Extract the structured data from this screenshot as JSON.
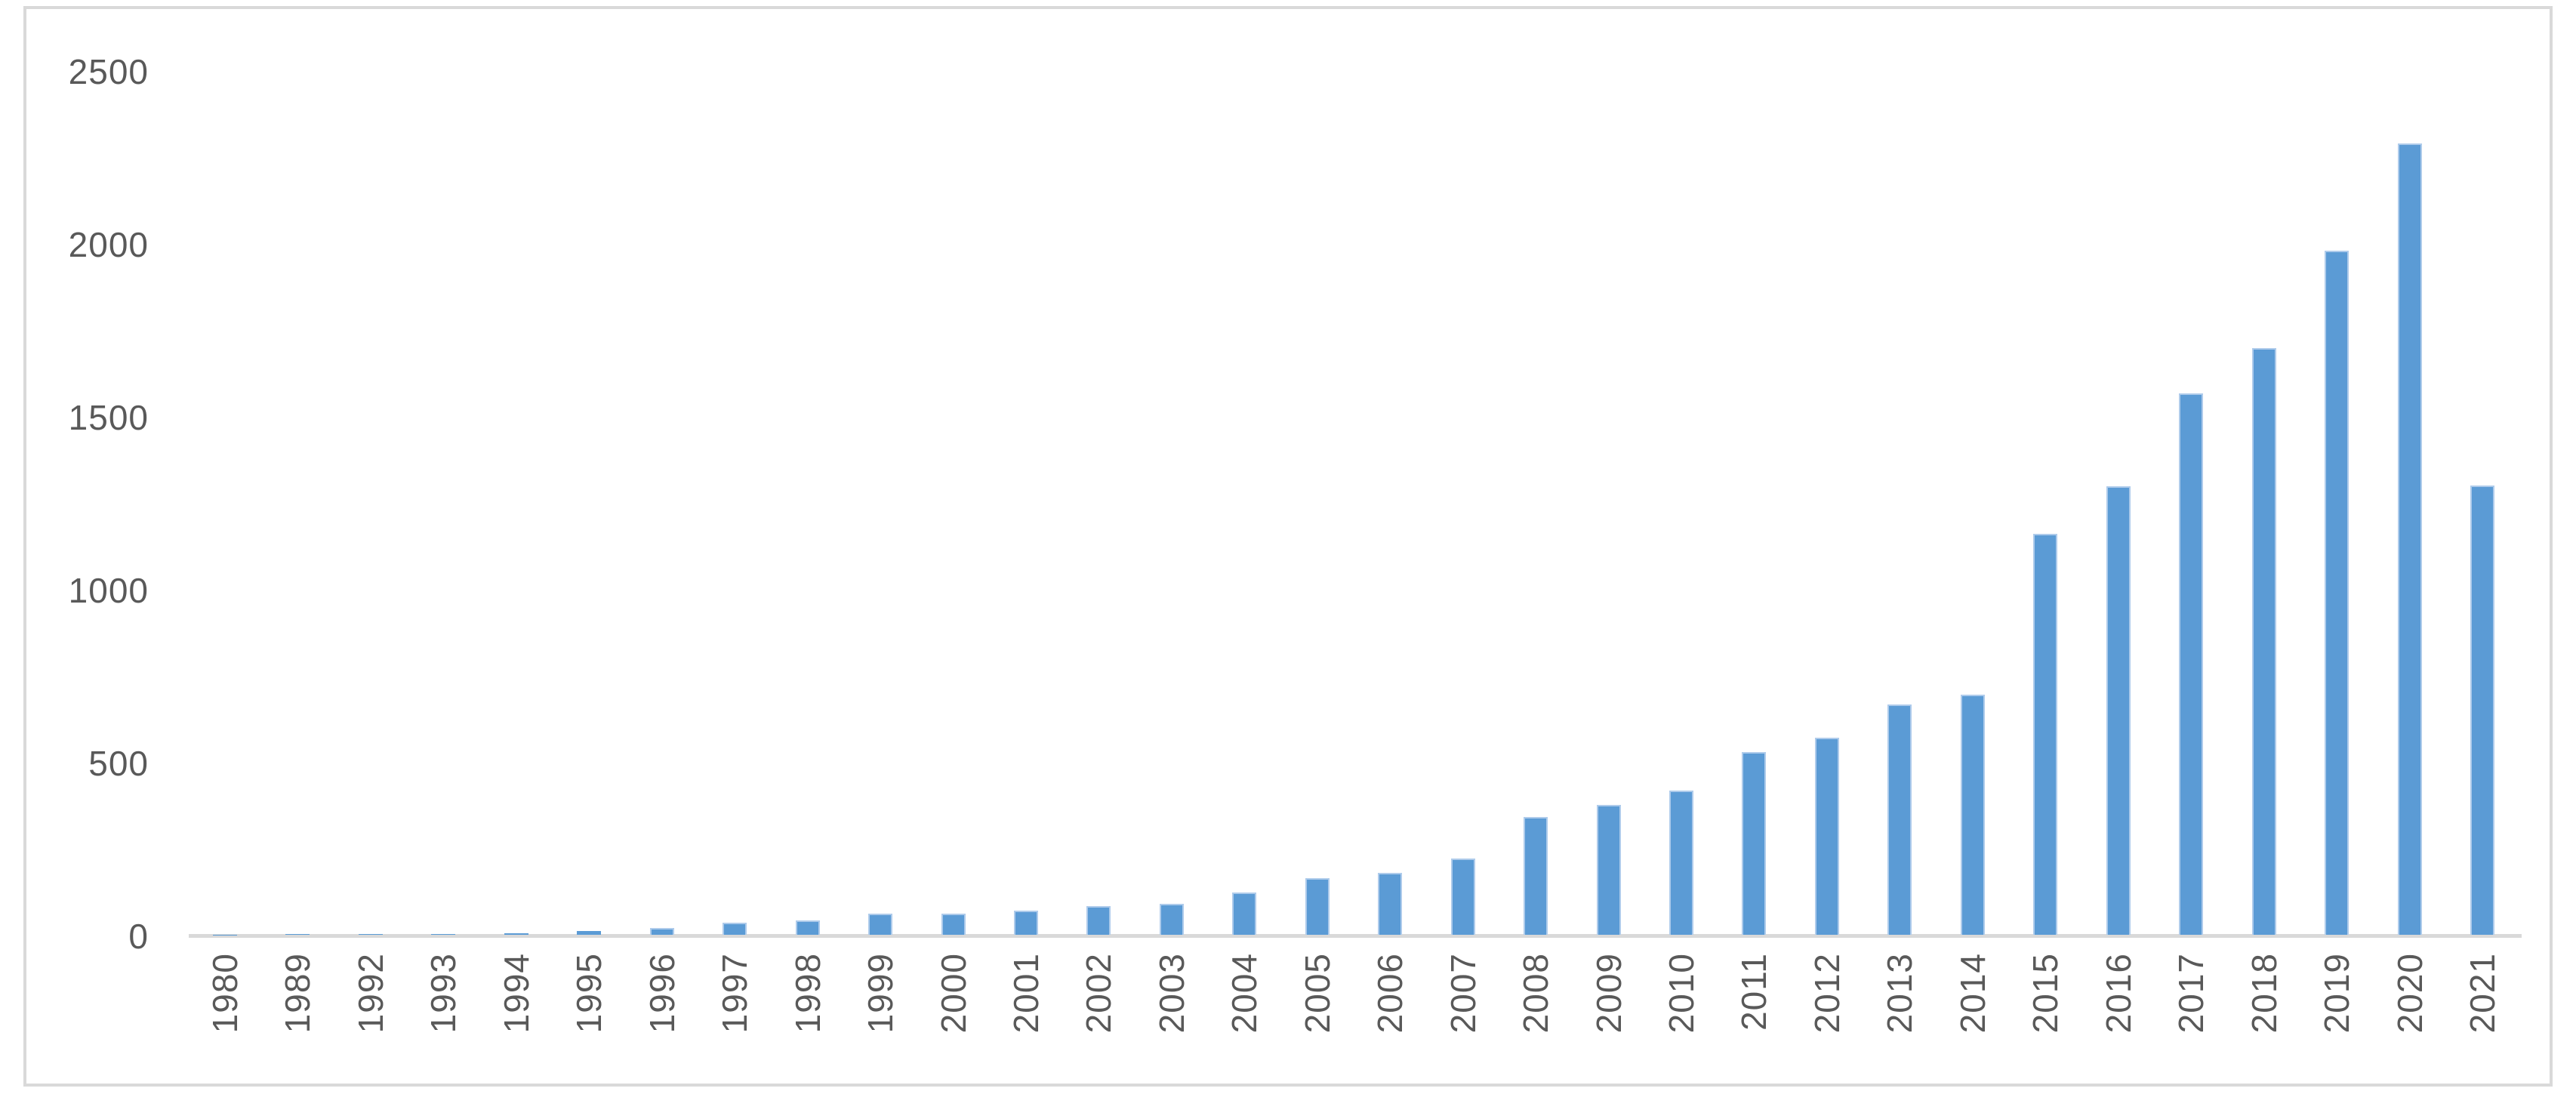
{
  "chart_data": {
    "type": "bar",
    "title": "",
    "xlabel": "",
    "ylabel": "",
    "categories": [
      "1980",
      "1989",
      "1992",
      "1993",
      "1994",
      "1995",
      "1996",
      "1997",
      "1998",
      "1999",
      "2000",
      "2001",
      "2002",
      "2003",
      "2004",
      "2005",
      "2006",
      "2007",
      "2008",
      "2009",
      "2010",
      "2011",
      "2012",
      "2013",
      "2014",
      "2015",
      "2016",
      "2017",
      "2018",
      "2019",
      "2020",
      "2021"
    ],
    "values": [
      1,
      2,
      2,
      3,
      4,
      12,
      20,
      35,
      42,
      62,
      62,
      70,
      82,
      90,
      122,
      163,
      178,
      220,
      340,
      376,
      416,
      528,
      570,
      665,
      694,
      1160,
      1298,
      1565,
      1697,
      1978,
      2288,
      1300
    ],
    "ylim": [
      0,
      2500
    ],
    "yticks": [
      0,
      500,
      1000,
      1500,
      2000,
      2500
    ],
    "grid": false,
    "legend": "none",
    "x_tick_rotation_deg": -90,
    "bar_color": "#5B9BD5",
    "bar_edge_color": "#AECBEB",
    "axis_line_color": "#D9D9D9",
    "tick_label_color": "#595959",
    "frame_border_color": "#D9D9D9",
    "background_color": "#FFFFFF"
  }
}
